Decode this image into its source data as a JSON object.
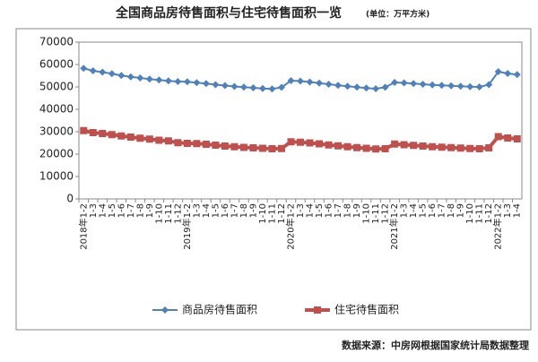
{
  "chart_data": {
    "type": "line",
    "title": "全国商品房待售面积与住宅待售面积一览",
    "subtitle": "(单位：万平方米)",
    "source": "数据来源：中房网根据国家统计局数据整理",
    "categories": [
      "2018年1-2",
      "1-3",
      "1-4",
      "1-5",
      "1-6",
      "1-7",
      "1-8",
      "1-9",
      "1-10",
      "1-11",
      "1-12",
      "2019年1-2",
      "1-3",
      "1-4",
      "1-5",
      "1-6",
      "1-7",
      "1-8",
      "1-9",
      "1-10",
      "1-11",
      "1-12",
      "2020年1-2",
      "1-3",
      "1-4",
      "1-5",
      "1-6",
      "1-7",
      "1-8",
      "1-9",
      "1-10",
      "1-11",
      "1-12",
      "2021年1-2",
      "1-3",
      "1-4",
      "1-5",
      "1-6",
      "1-7",
      "1-8",
      "1-9",
      "1-10",
      "1-11",
      "1-12",
      "2022年1-2",
      "1-3",
      "1-4"
    ],
    "series": [
      {
        "name": "商品房待售面积",
        "color": "#4f81bd",
        "marker": "diamond",
        "values": [
          58300,
          57200,
          56600,
          55900,
          55100,
          54500,
          54000,
          53500,
          53100,
          52700,
          52400,
          52300,
          51900,
          51500,
          51000,
          50600,
          50200,
          49900,
          49600,
          49300,
          49100,
          49800,
          52800,
          52600,
          52200,
          51700,
          51200,
          50700,
          50300,
          49900,
          49500,
          49200,
          49850,
          52000,
          51800,
          51500,
          51200,
          50900,
          50700,
          50500,
          50300,
          50100,
          50000,
          51000,
          56800,
          56000,
          55500
        ]
      },
      {
        "name": "住宅待售面积",
        "color": "#c0504d",
        "marker": "square",
        "values": [
          30500,
          29600,
          29200,
          28700,
          28100,
          27600,
          27100,
          26700,
          26200,
          25900,
          25100,
          24800,
          24700,
          24400,
          24000,
          23600,
          23300,
          23000,
          22800,
          22600,
          22400,
          22500,
          25500,
          25300,
          25000,
          24600,
          24100,
          23700,
          23300,
          22900,
          22600,
          22300,
          22400,
          24500,
          24200,
          23900,
          23600,
          23300,
          23100,
          22900,
          22700,
          22500,
          22400,
          22800,
          27800,
          27200,
          26800
        ]
      }
    ],
    "ylim": [
      0,
      70000
    ],
    "yticks": [
      0,
      10000,
      20000,
      30000,
      40000,
      50000,
      60000,
      70000
    ],
    "grid": false,
    "legend": "bottom"
  }
}
